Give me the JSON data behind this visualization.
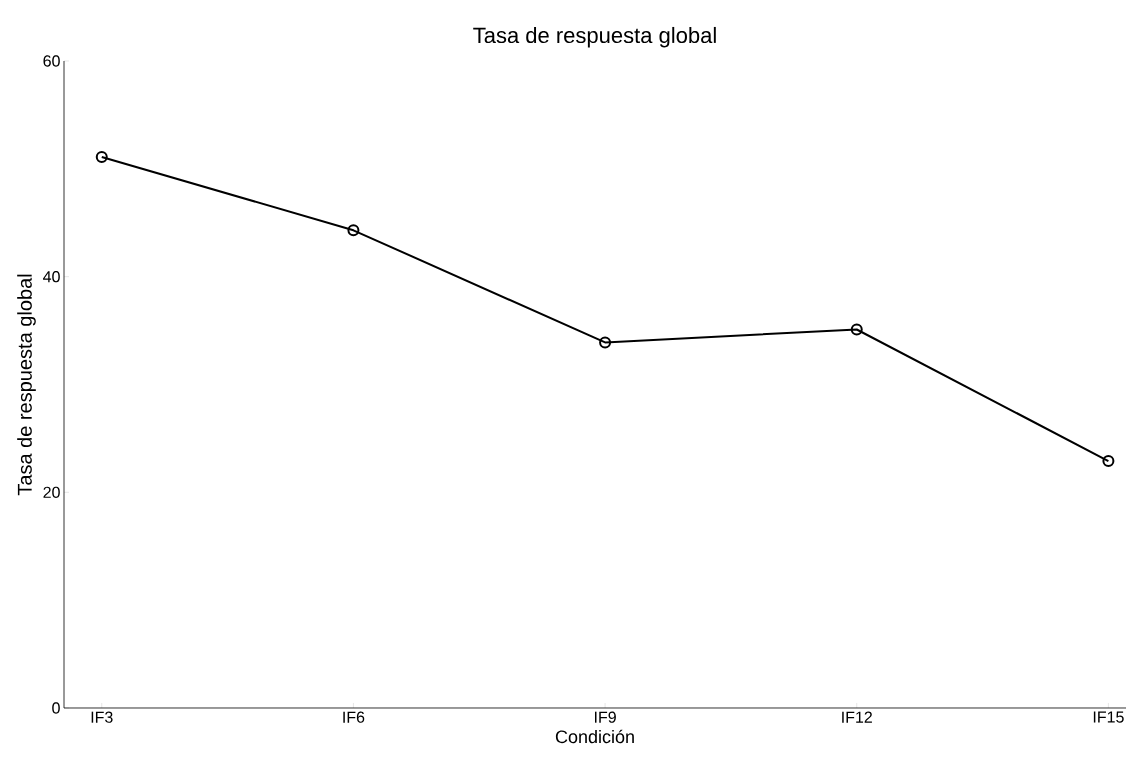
{
  "chart_data": {
    "type": "line",
    "title": "Tasa de respuesta global",
    "xlabel": "Condición",
    "ylabel": "Tasa de respuesta global",
    "categories": [
      "IF3",
      "IF6",
      "IF9",
      "IF12",
      "IF15"
    ],
    "series": [
      {
        "color": "#000000",
        "values": [
          51.1,
          44.3,
          33.9,
          35.1,
          22.9
        ]
      }
    ],
    "ylim": [
      0,
      60
    ],
    "yticks": [
      0,
      20,
      40,
      60
    ],
    "grid": false,
    "marker": "circle",
    "line_style": "solid"
  }
}
